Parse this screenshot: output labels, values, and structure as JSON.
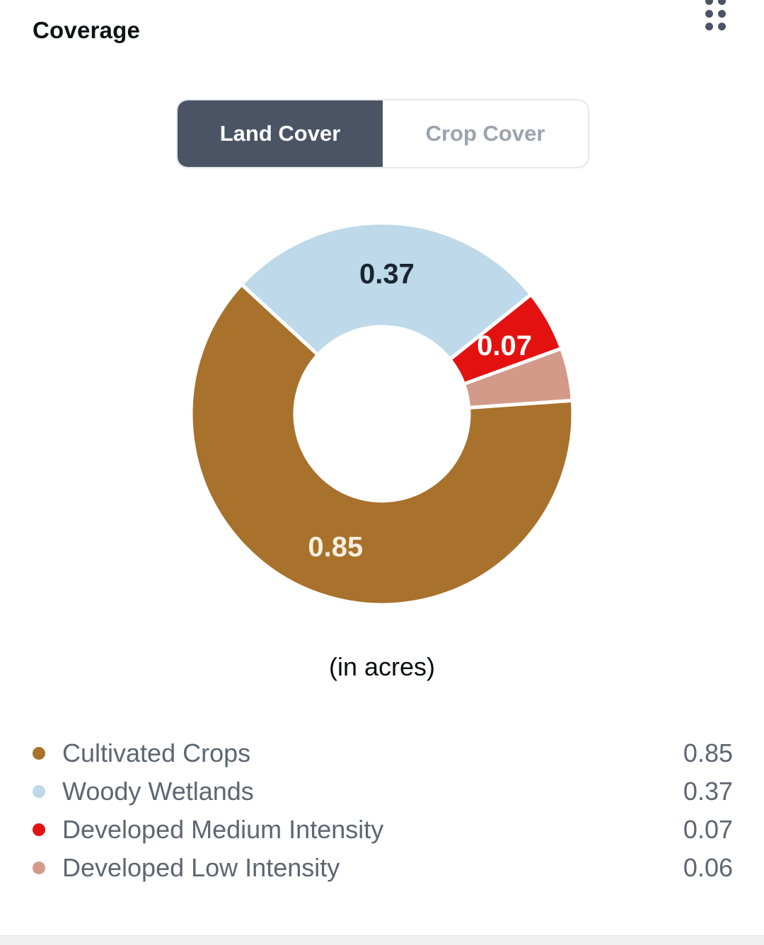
{
  "header": {
    "title": "Coverage",
    "grip_icon": "grip-dots-2x3",
    "accent_color": "#4b5464"
  },
  "tabs": {
    "items": [
      {
        "label": "Land Cover",
        "active": true
      },
      {
        "label": "Crop Cover",
        "active": false
      }
    ]
  },
  "chart_data": {
    "type": "pie",
    "subtype": "donut",
    "title": "Coverage",
    "unit_note": "(in acres)",
    "categories": [
      "Cultivated Crops",
      "Woody Wetlands",
      "Developed Medium Intensity",
      "Developed Low Intensity"
    ],
    "values": [
      0.85,
      0.37,
      0.07,
      0.06
    ],
    "slices": [
      {
        "name": "Cultivated Crops",
        "value": 0.85,
        "display_value": "0.85",
        "color": "#a8712c",
        "label_color": "#f7efde",
        "show_label": true
      },
      {
        "name": "Woody Wetlands",
        "value": 0.37,
        "display_value": "0.37",
        "color": "#bed9e9",
        "label_color": "#1b2433",
        "show_label": true
      },
      {
        "name": "Developed Medium Intensity",
        "value": 0.07,
        "display_value": "0.07",
        "color": "#e31210",
        "label_color": "#ffffff",
        "show_label": true
      },
      {
        "name": "Developed Low Intensity",
        "value": 0.06,
        "display_value": "0.06",
        "color": "#d49a89",
        "label_color": "#ffffff",
        "show_label": false
      }
    ],
    "layout": {
      "start_angle_deg": 4,
      "direction": "clockwise",
      "outer_radius": 270,
      "inner_radius_ratio": 0.4556,
      "gap_color": "#ffffff",
      "gap_width": 5,
      "legend_position": "bottom"
    }
  },
  "legend": {
    "items": [
      {
        "label": "Cultivated Crops",
        "value": "0.85",
        "color": "#a8712c"
      },
      {
        "label": "Woody Wetlands",
        "value": "0.37",
        "color": "#bed9e9"
      },
      {
        "label": "Developed Medium Intensity",
        "value": "0.07",
        "color": "#e31210"
      },
      {
        "label": "Developed Low Intensity",
        "value": "0.06",
        "color": "#d49a89"
      }
    ]
  }
}
